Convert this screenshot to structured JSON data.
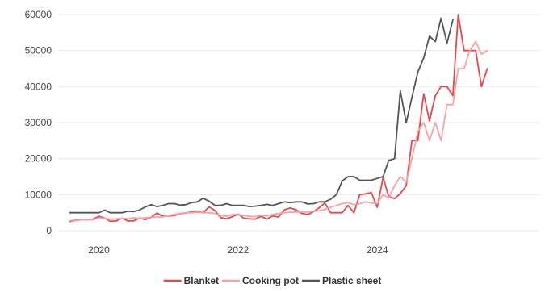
{
  "chart_data": {
    "type": "line",
    "title": "",
    "xlabel": "",
    "ylabel": "",
    "ylim": [
      0,
      60000
    ],
    "xlim": [
      "2019-06-01",
      "2026-05-01"
    ],
    "y_ticks": [
      0,
      10000,
      20000,
      30000,
      40000,
      50000,
      60000
    ],
    "y_tick_labels": [
      "0",
      "10000",
      "20000",
      "30000",
      "40000",
      "50000",
      "60000"
    ],
    "x_ticks": [
      "2020-01-01",
      "2022-01-01",
      "2024-01-01"
    ],
    "x_tick_labels": [
      "2020",
      "2022",
      "2024"
    ],
    "grid": "horizontal",
    "legend_position": "bottom",
    "series": [
      {
        "name": "Blanket",
        "color": "#e5484d",
        "points": [
          [
            "2019-08",
            2600
          ],
          [
            "2019-09",
            2900
          ],
          [
            "2019-10",
            3000
          ],
          [
            "2019-11",
            3000
          ],
          [
            "2019-12",
            3200
          ],
          [
            "2020-01",
            4000
          ],
          [
            "2020-02",
            3500
          ],
          [
            "2020-03",
            2600
          ],
          [
            "2020-04",
            2700
          ],
          [
            "2020-05",
            3500
          ],
          [
            "2020-06",
            2700
          ],
          [
            "2020-07",
            2700
          ],
          [
            "2020-08",
            3500
          ],
          [
            "2020-09",
            3100
          ],
          [
            "2020-10",
            3700
          ],
          [
            "2020-11",
            4900
          ],
          [
            "2020-12",
            4000
          ],
          [
            "2021-01",
            4100
          ],
          [
            "2021-02",
            4200
          ],
          [
            "2021-03",
            4700
          ],
          [
            "2021-04",
            4900
          ],
          [
            "2021-05",
            5200
          ],
          [
            "2021-06",
            5400
          ],
          [
            "2021-07",
            5000
          ],
          [
            "2021-08",
            6600
          ],
          [
            "2021-09",
            5600
          ],
          [
            "2021-10",
            3600
          ],
          [
            "2021-11",
            3300
          ],
          [
            "2021-12",
            3900
          ],
          [
            "2022-01",
            4600
          ],
          [
            "2022-02",
            3400
          ],
          [
            "2022-03",
            3300
          ],
          [
            "2022-04",
            3200
          ],
          [
            "2022-05",
            4000
          ],
          [
            "2022-06",
            3200
          ],
          [
            "2022-07",
            4100
          ],
          [
            "2022-08",
            3800
          ],
          [
            "2022-09",
            5800
          ],
          [
            "2022-10",
            6300
          ],
          [
            "2022-11",
            5800
          ],
          [
            "2022-12",
            4800
          ],
          [
            "2023-01",
            4500
          ],
          [
            "2023-02",
            5300
          ],
          [
            "2023-03",
            6300
          ],
          [
            "2023-04",
            7700
          ],
          [
            "2023-05",
            5000
          ],
          [
            "2023-06",
            5000
          ],
          [
            "2023-07",
            5000
          ],
          [
            "2023-08",
            7000
          ],
          [
            "2023-09",
            5000
          ],
          [
            "2023-10",
            10000
          ],
          [
            "2023-11",
            10200
          ],
          [
            "2023-12",
            10600
          ],
          [
            "2024-01",
            6500
          ],
          [
            "2024-02",
            14800
          ],
          [
            "2024-03",
            9500
          ],
          [
            "2024-04",
            8900
          ],
          [
            "2024-05",
            10300
          ],
          [
            "2024-06",
            12500
          ],
          [
            "2024-07",
            25000
          ],
          [
            "2024-08",
            25000
          ],
          [
            "2024-09",
            38000
          ],
          [
            "2024-10",
            30400
          ],
          [
            "2024-11",
            37500
          ],
          [
            "2024-12",
            40000
          ],
          [
            "2025-01",
            40000
          ],
          [
            "2025-02",
            37500
          ],
          [
            "2025-03",
            60000
          ],
          [
            "2025-04",
            50000
          ],
          [
            "2025-05",
            50000
          ],
          [
            "2025-06",
            50000
          ],
          [
            "2025-07",
            40000
          ],
          [
            "2025-08",
            45000
          ]
        ]
      },
      {
        "name": "Cooking pot",
        "color": "#f4a3a8",
        "points": [
          [
            "2019-08",
            2400
          ],
          [
            "2019-09",
            2800
          ],
          [
            "2019-10",
            3000
          ],
          [
            "2019-11",
            3000
          ],
          [
            "2019-12",
            3000
          ],
          [
            "2020-01",
            3600
          ],
          [
            "2020-02",
            3400
          ],
          [
            "2020-03",
            3200
          ],
          [
            "2020-04",
            3300
          ],
          [
            "2020-05",
            3400
          ],
          [
            "2020-06",
            3300
          ],
          [
            "2020-07",
            3600
          ],
          [
            "2020-08",
            3400
          ],
          [
            "2020-09",
            3600
          ],
          [
            "2020-10",
            3700
          ],
          [
            "2020-11",
            3800
          ],
          [
            "2020-12",
            3800
          ],
          [
            "2021-01",
            4200
          ],
          [
            "2021-02",
            4500
          ],
          [
            "2021-03",
            4800
          ],
          [
            "2021-04",
            5000
          ],
          [
            "2021-05",
            5000
          ],
          [
            "2021-06",
            5100
          ],
          [
            "2021-07",
            5000
          ],
          [
            "2021-08",
            5000
          ],
          [
            "2021-09",
            4800
          ],
          [
            "2021-10",
            4200
          ],
          [
            "2021-11",
            4000
          ],
          [
            "2021-12",
            4500
          ],
          [
            "2022-01",
            4400
          ],
          [
            "2022-02",
            4200
          ],
          [
            "2022-03",
            4000
          ],
          [
            "2022-04",
            3900
          ],
          [
            "2022-05",
            4300
          ],
          [
            "2022-06",
            4200
          ],
          [
            "2022-07",
            4500
          ],
          [
            "2022-08",
            4800
          ],
          [
            "2022-09",
            5000
          ],
          [
            "2022-10",
            5100
          ],
          [
            "2022-11",
            5200
          ],
          [
            "2022-12",
            5200
          ],
          [
            "2023-01",
            5200
          ],
          [
            "2023-02",
            5400
          ],
          [
            "2023-03",
            5500
          ],
          [
            "2023-04",
            5900
          ],
          [
            "2023-05",
            6500
          ],
          [
            "2023-06",
            7000
          ],
          [
            "2023-07",
            7500
          ],
          [
            "2023-08",
            7800
          ],
          [
            "2023-09",
            7200
          ],
          [
            "2023-10",
            7500
          ],
          [
            "2023-11",
            8000
          ],
          [
            "2023-12",
            7700
          ],
          [
            "2024-01",
            7500
          ],
          [
            "2024-02",
            10000
          ],
          [
            "2024-03",
            9000
          ],
          [
            "2024-04",
            12500
          ],
          [
            "2024-05",
            15000
          ],
          [
            "2024-06",
            13500
          ],
          [
            "2024-07",
            20000
          ],
          [
            "2024-08",
            27500
          ],
          [
            "2024-09",
            30000
          ],
          [
            "2024-10",
            25000
          ],
          [
            "2024-11",
            30000
          ],
          [
            "2024-12",
            25000
          ],
          [
            "2025-01",
            35000
          ],
          [
            "2025-02",
            35000
          ],
          [
            "2025-03",
            45000
          ],
          [
            "2025-04",
            45000
          ],
          [
            "2025-05",
            50000
          ],
          [
            "2025-06",
            52500
          ],
          [
            "2025-07",
            49000
          ],
          [
            "2025-08",
            50000
          ]
        ]
      },
      {
        "name": "Plastic sheet",
        "color": "#555555",
        "points": [
          [
            "2019-08",
            5000
          ],
          [
            "2019-09",
            5000
          ],
          [
            "2019-10",
            5000
          ],
          [
            "2019-11",
            5000
          ],
          [
            "2019-12",
            5000
          ],
          [
            "2020-01",
            5000
          ],
          [
            "2020-02",
            5700
          ],
          [
            "2020-03",
            5000
          ],
          [
            "2020-04",
            5000
          ],
          [
            "2020-05",
            5000
          ],
          [
            "2020-06",
            5400
          ],
          [
            "2020-07",
            5300
          ],
          [
            "2020-08",
            5700
          ],
          [
            "2020-09",
            6600
          ],
          [
            "2020-10",
            7200
          ],
          [
            "2020-11",
            6700
          ],
          [
            "2020-12",
            7000
          ],
          [
            "2021-01",
            7500
          ],
          [
            "2021-02",
            7500
          ],
          [
            "2021-03",
            7100
          ],
          [
            "2021-04",
            7200
          ],
          [
            "2021-05",
            7800
          ],
          [
            "2021-06",
            8000
          ],
          [
            "2021-07",
            9000
          ],
          [
            "2021-08",
            8200
          ],
          [
            "2021-09",
            7000
          ],
          [
            "2021-10",
            7000
          ],
          [
            "2021-11",
            7500
          ],
          [
            "2021-12",
            7000
          ],
          [
            "2022-01",
            7000
          ],
          [
            "2022-02",
            7000
          ],
          [
            "2022-03",
            6700
          ],
          [
            "2022-04",
            6800
          ],
          [
            "2022-05",
            7000
          ],
          [
            "2022-06",
            7300
          ],
          [
            "2022-07",
            7000
          ],
          [
            "2022-08",
            7500
          ],
          [
            "2022-09",
            8000
          ],
          [
            "2022-10",
            7800
          ],
          [
            "2022-11",
            8000
          ],
          [
            "2022-12",
            8000
          ],
          [
            "2023-01",
            7400
          ],
          [
            "2023-02",
            7500
          ],
          [
            "2023-03",
            8000
          ],
          [
            "2023-04",
            8000
          ],
          [
            "2023-05",
            8700
          ],
          [
            "2023-06",
            10000
          ],
          [
            "2023-07",
            13800
          ],
          [
            "2023-08",
            15000
          ],
          [
            "2023-09",
            15000
          ],
          [
            "2023-10",
            14000
          ],
          [
            "2023-11",
            14000
          ],
          [
            "2023-12",
            14000
          ],
          [
            "2024-01",
            14500
          ],
          [
            "2024-02",
            15000
          ],
          [
            "2024-03",
            19500
          ],
          [
            "2024-04",
            20000
          ],
          [
            "2024-05",
            38800
          ],
          [
            "2024-06",
            30000
          ],
          [
            "2024-07",
            37000
          ],
          [
            "2024-08",
            44000
          ],
          [
            "2024-09",
            48000
          ],
          [
            "2024-10",
            54000
          ],
          [
            "2024-11",
            52500
          ],
          [
            "2024-12",
            59000
          ],
          [
            "2025-01",
            52000
          ],
          [
            "2025-02",
            58500
          ]
        ]
      }
    ]
  }
}
